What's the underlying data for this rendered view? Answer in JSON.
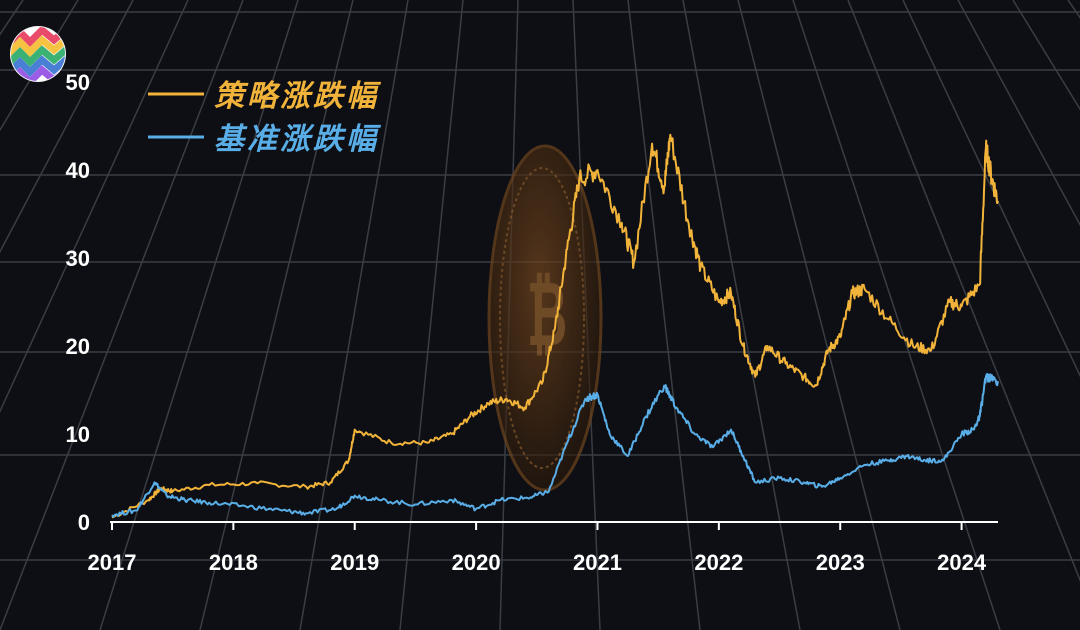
{
  "chart_data": {
    "type": "line",
    "title": "",
    "xlabel": "",
    "ylabel": "",
    "x_ticks": [
      "2017",
      "2018",
      "2019",
      "2020",
      "2021",
      "2022",
      "2023",
      "2024"
    ],
    "y_ticks": [
      "0",
      "10",
      "20",
      "30",
      "40",
      "50"
    ],
    "ylim": [
      0,
      50
    ],
    "xlim": [
      2017.0,
      2024.3
    ],
    "grid": true,
    "legend_position": "top-left",
    "series": [
      {
        "name": "策略涨跌幅",
        "color": "#f2b33a",
        "x": [
          2017.0,
          2017.3,
          2017.4,
          2017.5,
          2017.8,
          2018.2,
          2018.6,
          2018.8,
          2018.95,
          2019.0,
          2019.3,
          2019.6,
          2019.8,
          2019.95,
          2020.1,
          2020.25,
          2020.4,
          2020.55,
          2020.65,
          2020.75,
          2020.85,
          2021.0,
          2021.2,
          2021.3,
          2021.45,
          2021.55,
          2021.6,
          2021.75,
          2021.85,
          2022.0,
          2022.1,
          2022.2,
          2022.3,
          2022.4,
          2022.55,
          2022.7,
          2022.8,
          2022.9,
          2023.0,
          2023.1,
          2023.2,
          2023.4,
          2023.6,
          2023.75,
          2023.9,
          2024.0,
          2024.15,
          2024.2,
          2024.25,
          2024.3
        ],
        "y": [
          0.5,
          2.5,
          3.8,
          3.5,
          4.2,
          4.4,
          4.0,
          4.5,
          7.0,
          10.5,
          9.0,
          9.0,
          10.0,
          12.0,
          13.5,
          14.0,
          13.0,
          16.0,
          22.0,
          31.0,
          39.0,
          40.0,
          34.0,
          29.5,
          43.0,
          38.0,
          44.0,
          34.0,
          29.0,
          25.0,
          26.0,
          20.0,
          16.5,
          20.0,
          18.0,
          16.5,
          15.5,
          19.5,
          21.0,
          26.0,
          26.5,
          23.0,
          20.0,
          19.5,
          25.0,
          24.5,
          27.0,
          42.5,
          39.0,
          36.5
        ]
      },
      {
        "name": "基准涨跌幅",
        "color": "#5aaee8",
        "x": [
          2017.0,
          2017.2,
          2017.35,
          2017.45,
          2017.6,
          2017.8,
          2018.1,
          2018.4,
          2018.6,
          2018.85,
          2019.0,
          2019.2,
          2019.5,
          2019.8,
          2020.0,
          2020.2,
          2020.45,
          2020.6,
          2020.75,
          2020.9,
          2021.0,
          2021.1,
          2021.25,
          2021.4,
          2021.55,
          2021.65,
          2021.8,
          2021.95,
          2022.1,
          2022.2,
          2022.3,
          2022.5,
          2022.7,
          2022.85,
          2023.0,
          2023.2,
          2023.4,
          2023.55,
          2023.7,
          2023.85,
          2024.0,
          2024.1,
          2024.15,
          2024.2,
          2024.3
        ],
        "y": [
          0.8,
          1.3,
          4.5,
          3.0,
          2.5,
          2.2,
          1.8,
          1.3,
          1.0,
          1.5,
          3.0,
          2.5,
          2.0,
          2.5,
          1.5,
          2.5,
          2.8,
          3.5,
          9.0,
          14.0,
          14.5,
          10.0,
          7.5,
          12.0,
          15.5,
          13.0,
          10.0,
          8.5,
          10.5,
          7.5,
          4.5,
          5.0,
          4.5,
          4.0,
          5.0,
          6.5,
          7.0,
          7.5,
          7.0,
          7.0,
          10.0,
          10.5,
          12.0,
          16.5,
          16.0
        ]
      }
    ]
  },
  "icons": {
    "logo": "colorful-zigzag-logo-icon",
    "background": "bitcoin-coin-icon"
  }
}
